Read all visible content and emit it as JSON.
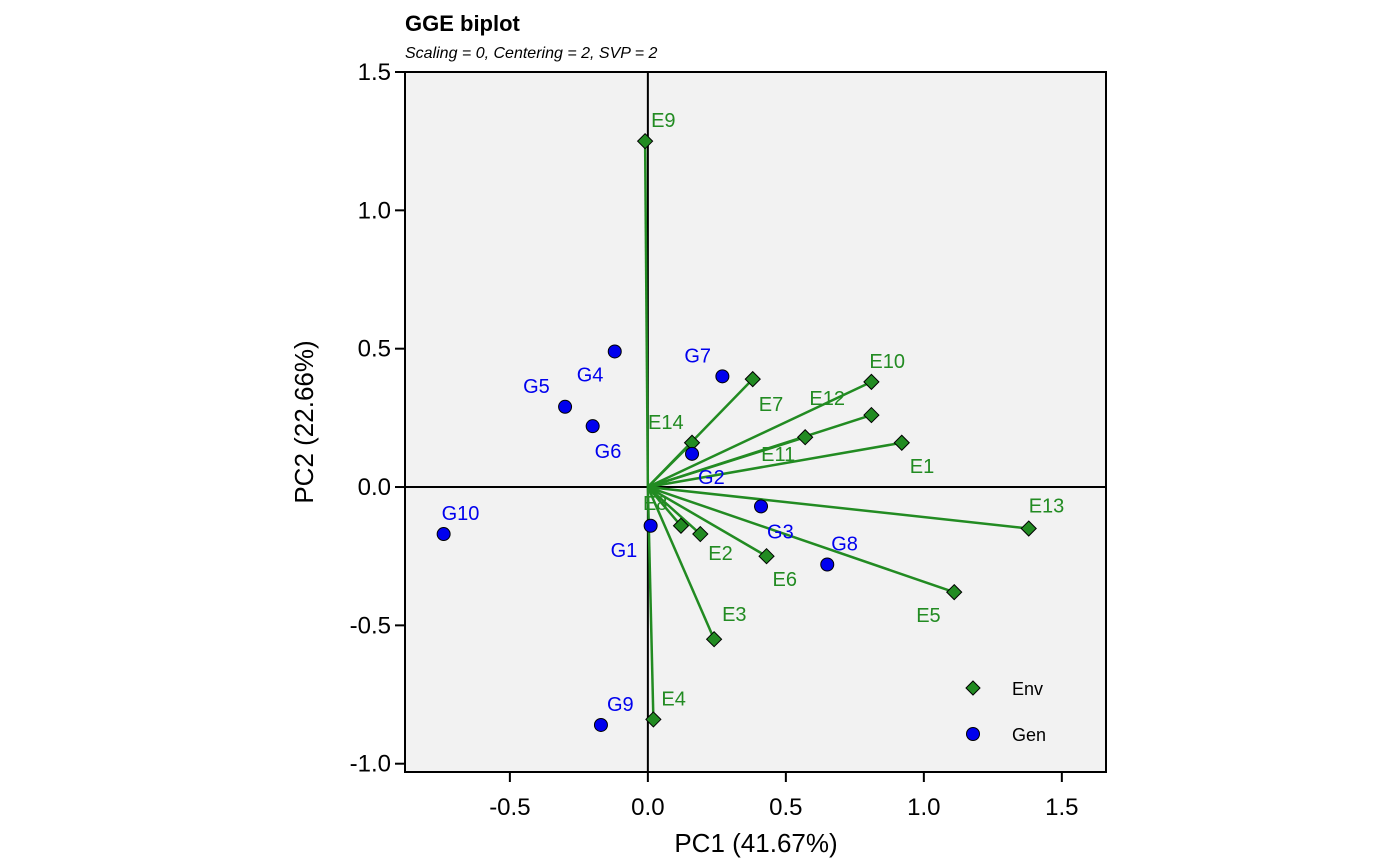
{
  "chart_data": {
    "type": "scatter",
    "title": "GGE biplot",
    "subtitle": "Scaling = 0, Centering = 2, SVP = 2",
    "xlabel": "PC1 (41.67%)",
    "ylabel": "PC2 (22.66%)",
    "xlim": [
      -0.88,
      1.66
    ],
    "ylim": [
      -1.03,
      1.5
    ],
    "xticks": [
      "-0.5",
      "0.0",
      "0.5",
      "1.0",
      "1.5"
    ],
    "yticks": [
      "-1.0",
      "-0.5",
      "0.0",
      "0.5",
      "1.0",
      "1.5"
    ],
    "colors": {
      "env": "#228B22",
      "gen": "#0000EE",
      "panel": "#F2F2F2"
    },
    "series": [
      {
        "name": "Env",
        "marker": "diamond",
        "vectors_from_origin": true,
        "points": [
          {
            "label": "E1",
            "x": 0.92,
            "y": 0.16
          },
          {
            "label": "E2",
            "x": 0.19,
            "y": -0.17
          },
          {
            "label": "E3",
            "x": 0.24,
            "y": -0.55
          },
          {
            "label": "E4",
            "x": 0.02,
            "y": -0.84
          },
          {
            "label": "E5",
            "x": 1.11,
            "y": -0.38
          },
          {
            "label": "E6",
            "x": 0.43,
            "y": -0.25
          },
          {
            "label": "E7",
            "x": 0.38,
            "y": 0.39
          },
          {
            "label": "E8",
            "x": 0.12,
            "y": -0.14
          },
          {
            "label": "E9",
            "x": -0.01,
            "y": 1.25
          },
          {
            "label": "E10",
            "x": 0.81,
            "y": 0.38
          },
          {
            "label": "E11",
            "x": 0.57,
            "y": 0.18
          },
          {
            "label": "E12",
            "x": 0.81,
            "y": 0.26
          },
          {
            "label": "E13",
            "x": 1.38,
            "y": -0.15
          },
          {
            "label": "E14",
            "x": 0.16,
            "y": 0.16
          }
        ]
      },
      {
        "name": "Gen",
        "marker": "circle",
        "points": [
          {
            "label": "G1",
            "x": 0.01,
            "y": -0.14
          },
          {
            "label": "G2",
            "x": 0.16,
            "y": 0.12
          },
          {
            "label": "G3",
            "x": 0.41,
            "y": -0.07
          },
          {
            "label": "G4",
            "x": -0.12,
            "y": 0.49
          },
          {
            "label": "G5",
            "x": -0.3,
            "y": 0.29
          },
          {
            "label": "G6",
            "x": -0.2,
            "y": 0.22
          },
          {
            "label": "G7",
            "x": 0.27,
            "y": 0.4
          },
          {
            "label": "G8",
            "x": 0.65,
            "y": -0.28
          },
          {
            "label": "G9",
            "x": -0.17,
            "y": -0.86
          },
          {
            "label": "G10",
            "x": -0.74,
            "y": -0.17
          }
        ]
      }
    ],
    "legend": {
      "position": "bottom-right",
      "items": [
        {
          "label": "Env",
          "marker": "diamond"
        },
        {
          "label": "Gen",
          "marker": "circle"
        }
      ]
    }
  }
}
